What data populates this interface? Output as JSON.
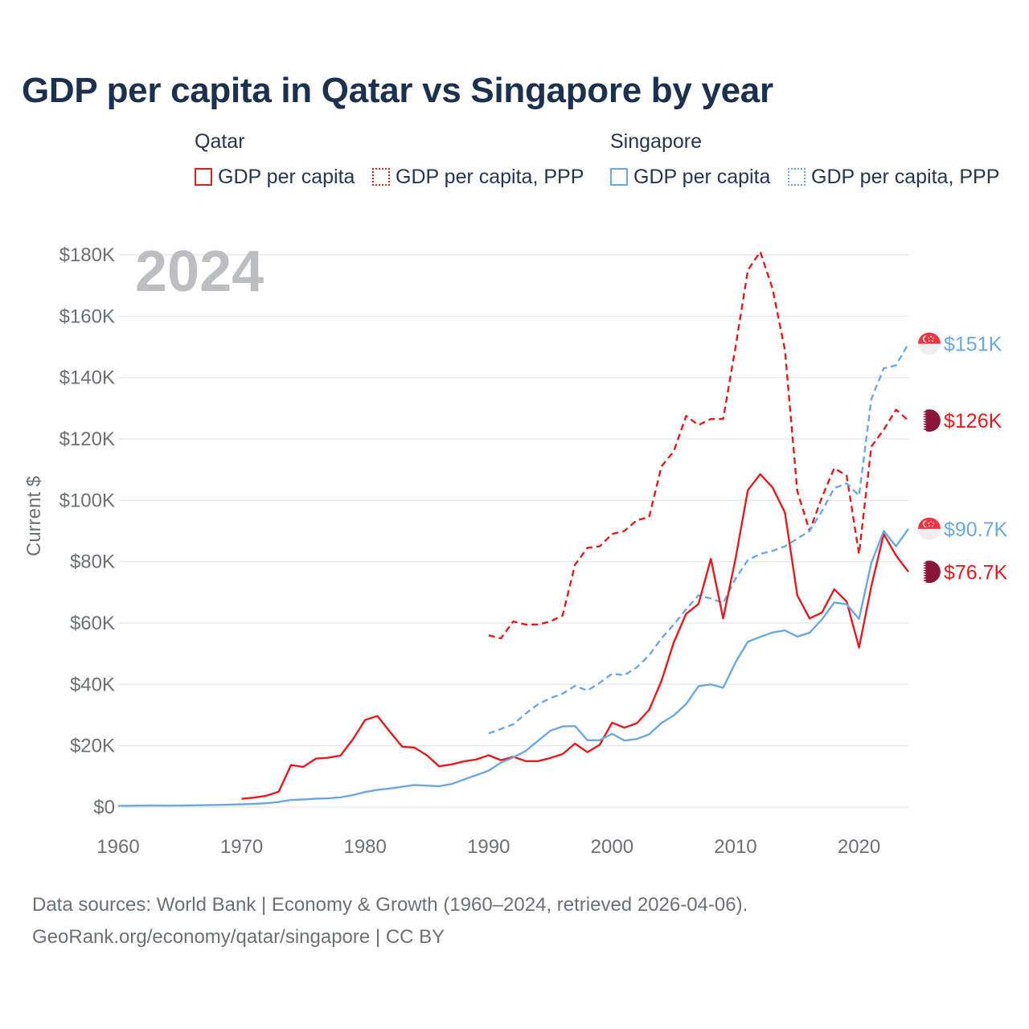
{
  "title": "GDP per capita in Qatar vs Singapore by year",
  "legend": {
    "groups": [
      {
        "name": "Qatar",
        "items": [
          {
            "label": "GDP per capita",
            "style": "solid",
            "color": "#e41a1c"
          },
          {
            "label": "GDP per capita, PPP",
            "style": "dotted",
            "color": "#e41a1c"
          }
        ]
      },
      {
        "name": "Singapore",
        "items": [
          {
            "label": "GDP per capita",
            "style": "solid",
            "color": "#6aa8e3"
          },
          {
            "label": "GDP per capita, PPP",
            "style": "dotted",
            "color": "#6aa8e3"
          }
        ]
      }
    ]
  },
  "chart_data": {
    "type": "line",
    "year_watermark": "2024",
    "ylabel": "Current $",
    "xlabel": "",
    "xlim": [
      1960,
      2024
    ],
    "ylim": [
      0,
      180000
    ],
    "grid": true,
    "x_ticks": [
      {
        "value": 1960,
        "label": "1960"
      },
      {
        "value": 1970,
        "label": "1970"
      },
      {
        "value": 1980,
        "label": "1980"
      },
      {
        "value": 1990,
        "label": "1990"
      },
      {
        "value": 2000,
        "label": "2000"
      },
      {
        "value": 2010,
        "label": "2010"
      },
      {
        "value": 2020,
        "label": "2020"
      }
    ],
    "y_ticks": [
      {
        "value": 0,
        "label": "$0"
      },
      {
        "value": 20000,
        "label": "$20K"
      },
      {
        "value": 40000,
        "label": "$40K"
      },
      {
        "value": 60000,
        "label": "$60K"
      },
      {
        "value": 80000,
        "label": "$80K"
      },
      {
        "value": 100000,
        "label": "$100K"
      },
      {
        "value": 120000,
        "label": "$120K"
      },
      {
        "value": 140000,
        "label": "$140K"
      },
      {
        "value": 160000,
        "label": "$160K"
      },
      {
        "value": 180000,
        "label": "$180K"
      }
    ],
    "series": [
      {
        "name": "Qatar GDP per capita, PPP",
        "country": "Qatar",
        "dash": "dashed",
        "color": "#e41a1c",
        "end_label": "$126K",
        "flag": "qatar",
        "x": [
          1990,
          1991,
          1992,
          1993,
          1994,
          1995,
          1996,
          1997,
          1998,
          1999,
          2000,
          2001,
          2002,
          2003,
          2004,
          2005,
          2006,
          2007,
          2008,
          2009,
          2010,
          2011,
          2012,
          2013,
          2014,
          2015,
          2016,
          2017,
          2018,
          2019,
          2020,
          2021,
          2022,
          2023,
          2024
        ],
        "values": [
          56000,
          55000,
          60500,
          59500,
          59500,
          60500,
          62500,
          79000,
          84500,
          85000,
          89000,
          90000,
          93500,
          94500,
          111000,
          116000,
          127500,
          124500,
          126500,
          126500,
          150000,
          175000,
          181000,
          169000,
          149000,
          103000,
          90000,
          101000,
          110500,
          108000,
          82500,
          117500,
          123000,
          129500,
          126000
        ]
      },
      {
        "name": "Singapore GDP per capita, PPP",
        "country": "Singapore",
        "dash": "dashed",
        "color": "#6aa8e3",
        "end_label": "$151K",
        "flag": "singapore",
        "x": [
          1990,
          1991,
          1992,
          1993,
          1994,
          1995,
          1996,
          1997,
          1998,
          1999,
          2000,
          2001,
          2002,
          2003,
          2004,
          2005,
          2006,
          2007,
          2008,
          2009,
          2010,
          2011,
          2012,
          2013,
          2014,
          2015,
          2016,
          2017,
          2018,
          2019,
          2020,
          2021,
          2022,
          2023,
          2024
        ],
        "values": [
          24000,
          25500,
          27000,
          30500,
          33500,
          35500,
          37000,
          39500,
          38000,
          40500,
          43500,
          43000,
          45500,
          49500,
          55000,
          59500,
          64500,
          69000,
          68000,
          66500,
          74500,
          80500,
          82500,
          83500,
          85000,
          87500,
          90000,
          96500,
          104000,
          105500,
          101500,
          133000,
          143000,
          144000,
          151000
        ]
      },
      {
        "name": "Qatar GDP per capita",
        "country": "Qatar",
        "dash": "solid",
        "color": "#e41a1c",
        "end_label": "$76.7K",
        "flag": "qatar",
        "x": [
          1970,
          1971,
          1972,
          1973,
          1974,
          1975,
          1976,
          1977,
          1978,
          1979,
          1980,
          1981,
          1982,
          1983,
          1984,
          1985,
          1986,
          1987,
          1988,
          1989,
          1990,
          1991,
          1992,
          1993,
          1994,
          1995,
          1996,
          1997,
          1998,
          1999,
          2000,
          2001,
          2002,
          2003,
          2004,
          2005,
          2006,
          2007,
          2008,
          2009,
          2010,
          2011,
          2012,
          2013,
          2014,
          2015,
          2016,
          2017,
          2018,
          2019,
          2020,
          2021,
          2022,
          2023,
          2024
        ],
        "values": [
          2700,
          3100,
          3700,
          5000,
          13700,
          13100,
          15800,
          16100,
          16800,
          22000,
          28400,
          29700,
          24600,
          19700,
          19400,
          16900,
          13300,
          13900,
          14900,
          15500,
          16900,
          15300,
          16400,
          15000,
          15000,
          16000,
          17300,
          20700,
          17900,
          20300,
          27500,
          25900,
          27300,
          31700,
          41100,
          53700,
          63000,
          66200,
          80900,
          61500,
          81000,
          103300,
          108500,
          104200,
          96000,
          69000,
          61500,
          63400,
          71000,
          67000,
          52000,
          72000,
          89000,
          82000,
          76700
        ]
      },
      {
        "name": "Singapore GDP per capita",
        "country": "Singapore",
        "dash": "solid",
        "color": "#6aa8e3",
        "end_label": "$90.7K",
        "flag": "singapore",
        "x": [
          1960,
          1961,
          1962,
          1963,
          1964,
          1965,
          1966,
          1967,
          1968,
          1969,
          1970,
          1971,
          1972,
          1973,
          1974,
          1975,
          1976,
          1977,
          1978,
          1979,
          1980,
          1981,
          1982,
          1983,
          1984,
          1985,
          1986,
          1987,
          1988,
          1989,
          1990,
          1991,
          1992,
          1993,
          1994,
          1995,
          1996,
          1997,
          1998,
          1999,
          2000,
          2001,
          2002,
          2003,
          2004,
          2005,
          2006,
          2007,
          2008,
          2009,
          2010,
          2011,
          2012,
          2013,
          2014,
          2015,
          2016,
          2017,
          2018,
          2019,
          2020,
          2021,
          2022,
          2023,
          2024
        ],
        "values": [
          430,
          450,
          490,
          540,
          510,
          520,
          570,
          630,
          700,
          810,
          930,
          1070,
          1260,
          1680,
          2340,
          2490,
          2750,
          2850,
          3200,
          3900,
          4930,
          5600,
          6080,
          6630,
          7240,
          6990,
          6810,
          7540,
          9000,
          10400,
          11900,
          14500,
          16200,
          18300,
          21600,
          24900,
          26300,
          26400,
          21800,
          21800,
          23900,
          21700,
          22200,
          23700,
          27400,
          29900,
          33600,
          39400,
          40000,
          38900,
          47200,
          53900,
          55500,
          56900,
          57600,
          55600,
          56800,
          61200,
          66700,
          66100,
          61300,
          79600,
          90000,
          85000,
          90700
        ]
      }
    ]
  },
  "sources": {
    "line1": "Data sources: World Bank | Economy & Growth (1960–2024, retrieved 2026-04-06).",
    "line2": "GeoRank.org/economy/qatar/singapore | CC BY"
  }
}
